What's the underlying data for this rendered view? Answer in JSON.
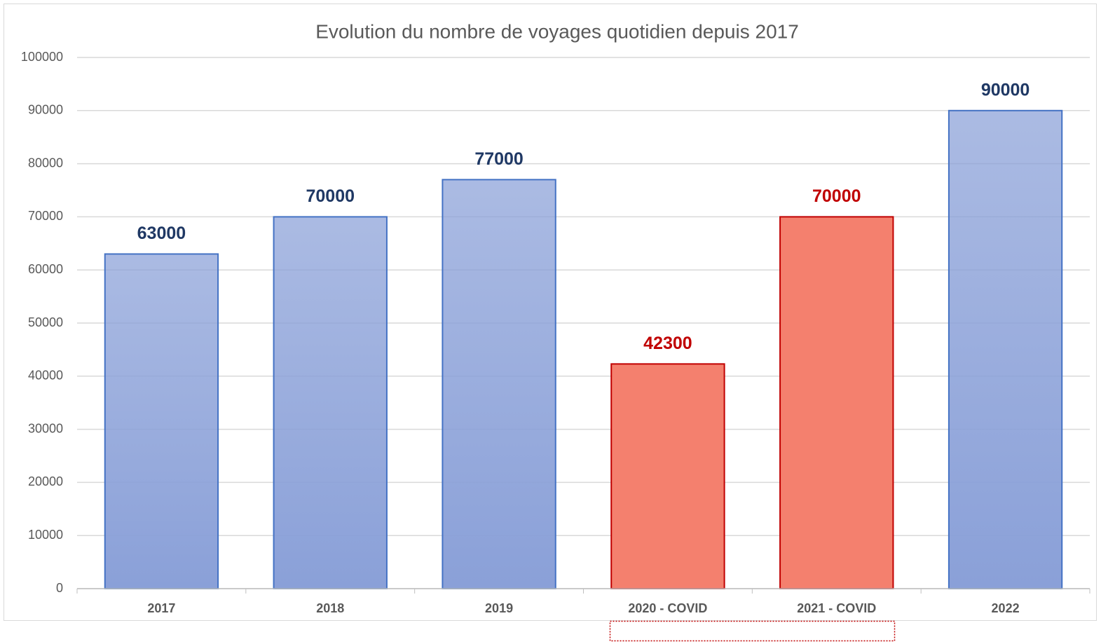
{
  "chart_data": {
    "type": "bar",
    "title": "Evolution du nombre de voyages quotidien depuis 2017",
    "categories": [
      "2017",
      "2018",
      "2019",
      "2020 - COVID",
      "2021 - COVID",
      "2022"
    ],
    "values": [
      63000,
      70000,
      77000,
      42300,
      70000,
      90000
    ],
    "colors": [
      "#8aa0d8",
      "#8aa0d8",
      "#8aa0d8",
      "#f4806e",
      "#f4806e",
      "#8aa0d8"
    ],
    "border_colors": [
      "#4472c4",
      "#4472c4",
      "#4472c4",
      "#c00000",
      "#c00000",
      "#4472c4"
    ],
    "label_colors": [
      "#1f3864",
      "#1f3864",
      "#1f3864",
      "#c00000",
      "#c00000",
      "#1f3864"
    ],
    "ylim": [
      0,
      100000
    ],
    "yticks": [
      0,
      10000,
      20000,
      30000,
      40000,
      50000,
      60000,
      70000,
      80000,
      90000,
      100000
    ],
    "grid": true
  }
}
